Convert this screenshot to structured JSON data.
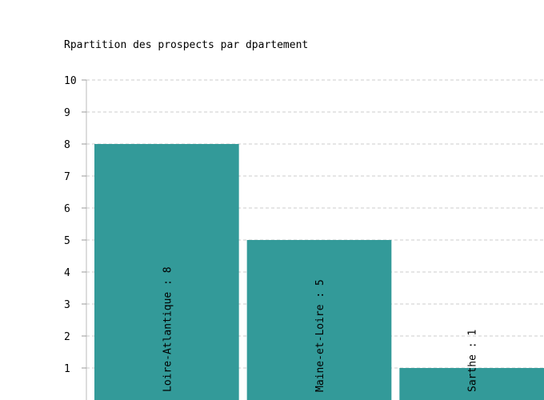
{
  "chart_data": {
    "type": "bar",
    "title": "Rpartition des prospects par dpartement",
    "categories": [
      "Loire-Atlantique",
      "Maine-et-Loire",
      "Sarthe"
    ],
    "values": [
      8,
      5,
      1
    ],
    "bar_labels": [
      "Loire-Atlantique : 8",
      "Maine-et-Loire : 5",
      "Sarthe : 1"
    ],
    "ylim": [
      0,
      10
    ],
    "yticks": [
      1,
      2,
      3,
      4,
      5,
      6,
      7,
      8,
      9,
      10
    ],
    "grid": true,
    "bar_color": "#339a99",
    "grid_color": "#cccccc"
  }
}
